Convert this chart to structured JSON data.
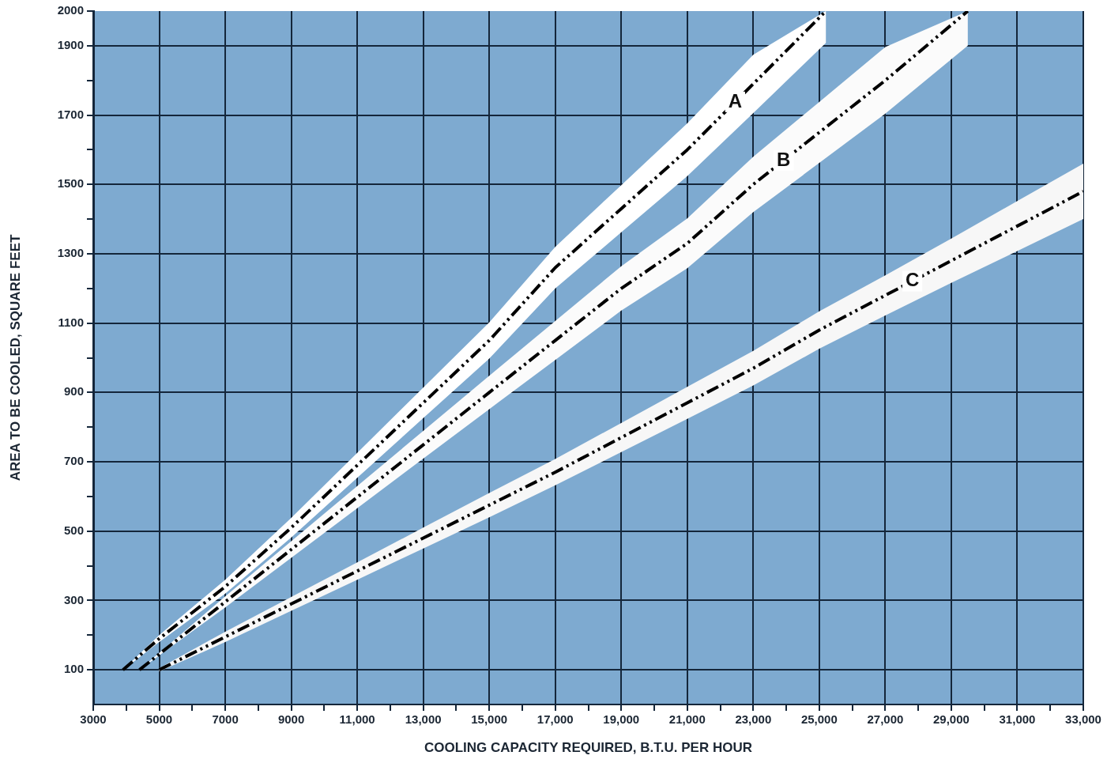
{
  "chart_data": {
    "type": "line",
    "xlabel": "COOLING CAPACITY REQUIRED, B.T.U. PER HOUR",
    "ylabel": "AREA TO BE COOLED, SQUARE FEET",
    "xlim": [
      3000,
      33000
    ],
    "xticks": [
      3000,
      {
        "value": 4000,
        "label": null
      },
      5000,
      {
        "value": 6000,
        "label": null
      },
      7000,
      {
        "value": 8000,
        "label": null
      },
      9000,
      {
        "value": 10000,
        "label": null
      },
      {
        "value": 11000,
        "label": "11,000"
      },
      {
        "value": 12000,
        "label": null
      },
      {
        "value": 13000,
        "label": "13,000"
      },
      {
        "value": 14000,
        "label": null
      },
      {
        "value": 15000,
        "label": "15,000"
      },
      {
        "value": 16000,
        "label": null
      },
      {
        "value": 17000,
        "label": "17,000"
      },
      {
        "value": 18000,
        "label": null
      },
      {
        "value": 19000,
        "label": "19,000"
      },
      {
        "value": 20000,
        "label": null
      },
      {
        "value": 21000,
        "label": "21,000"
      },
      {
        "value": 22000,
        "label": null
      },
      {
        "value": 23000,
        "label": "23,000"
      },
      {
        "value": 24000,
        "label": null
      },
      {
        "value": 25000,
        "label": "25,000"
      },
      {
        "value": 26000,
        "label": null
      },
      {
        "value": 27000,
        "label": "27,000"
      },
      {
        "value": 28000,
        "label": null
      },
      {
        "value": 29000,
        "label": "29,000"
      },
      {
        "value": 30000,
        "label": null
      },
      {
        "value": 31000,
        "label": "31,000"
      },
      {
        "value": 32000,
        "label": null
      },
      {
        "value": 33000,
        "label": "33,000"
      }
    ],
    "ylim": [
      0,
      2000
    ],
    "yticks": [
      100,
      {
        "value": 200,
        "label": null
      },
      300,
      {
        "value": 400,
        "label": null
      },
      500,
      {
        "value": 600,
        "label": null
      },
      700,
      {
        "value": 800,
        "label": null
      },
      900,
      {
        "value": 1000,
        "label": null
      },
      1100,
      {
        "value": 1200,
        "label": null
      },
      1300,
      {
        "value": 1400,
        "label": null
      },
      1500,
      {
        "value": 1600,
        "label": null
      },
      1700,
      {
        "value": 1800,
        "label": null
      },
      1900,
      2000
    ],
    "grid": true,
    "marker": "none",
    "line_style": "dashed",
    "legend": false,
    "series": [
      {
        "color": "#000000",
        "x": [
          3900,
          5000,
          7000,
          9000,
          11000,
          13000,
          15000,
          17000,
          19000,
          21000,
          23000,
          25200
        ],
        "values": [
          100,
          190,
          340,
          510,
          690,
          870,
          1050,
          1260,
          1430,
          1600,
          1790,
          2000
        ],
        "lower": [
          100,
          180,
          320,
          482,
          654,
          826,
          998,
          1200,
          1362,
          1524,
          1706,
          1908
        ],
        "upper": [
          100,
          200,
          360,
          538,
          726,
          914,
          1102,
          1320,
          1498,
          1676,
          1874,
          2000
        ]
      },
      {
        "color": "#000000",
        "x": [
          4400,
          7000,
          9000,
          11000,
          13000,
          15000,
          17000,
          19000,
          21000,
          23000,
          25000,
          27000,
          29500
        ],
        "values": [
          100,
          296,
          447,
          598,
          749,
          900,
          1050,
          1200,
          1330,
          1500,
          1650,
          1800,
          2000
        ],
        "lower": [
          100,
          280,
          423,
          566,
          709,
          852,
          994,
          1136,
          1258,
          1420,
          1562,
          1704,
          1900
        ],
        "upper": [
          100,
          312,
          471,
          630,
          789,
          948,
          1106,
          1264,
          1402,
          1580,
          1738,
          1896,
          2000
        ]
      },
      {
        "color": "#000000",
        "x": [
          5000,
          7000,
          9000,
          11000,
          13000,
          15000,
          17000,
          19000,
          21000,
          23000,
          25000,
          27000,
          29000,
          31000,
          33000
        ],
        "values": [
          100,
          195,
          290,
          385,
          480,
          575,
          670,
          770,
          870,
          970,
          1080,
          1180,
          1280,
          1380,
          1480
        ],
        "lower": [
          95,
          180,
          270,
          360,
          450,
          540,
          632,
          728,
          824,
          920,
          1026,
          1122,
          1216,
          1308,
          1400
        ],
        "upper": [
          105,
          210,
          310,
          410,
          510,
          610,
          708,
          812,
          916,
          1020,
          1134,
          1238,
          1344,
          1452,
          1560
        ]
      }
    ],
    "annotations": [
      {
        "text": "A",
        "x": 22450,
        "y": 1738
      },
      {
        "text": "B",
        "x": 23920,
        "y": 1569
      },
      {
        "text": "C",
        "x": 27820,
        "y": 1221
      }
    ]
  }
}
